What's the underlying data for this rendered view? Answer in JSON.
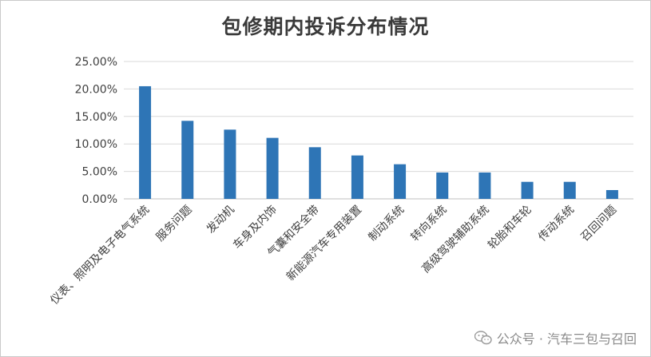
{
  "chart_data": {
    "type": "bar",
    "title": "包修期内投诉分布情况",
    "categories": [
      "仪表、照明及电子电气系统",
      "服务问题",
      "发动机",
      "车身及内饰",
      "气囊和安全带",
      "新能源汽车专用装置",
      "制动系统",
      "转向系统",
      "高级驾驶辅助系统",
      "轮胎和车轮",
      "传动系统",
      "召回问题"
    ],
    "values": [
      20.5,
      14.2,
      12.6,
      11.1,
      9.4,
      7.9,
      6.3,
      4.8,
      4.8,
      3.1,
      3.1,
      1.6
    ],
    "y_ticks": [
      "0.00%",
      "5.00%",
      "10.00%",
      "15.00%",
      "20.00%",
      "25.00%"
    ],
    "ylim": [
      0,
      25
    ],
    "xlabel": "",
    "ylabel": "",
    "grid": true,
    "bar_color": "#2e75b6"
  },
  "watermark": {
    "icon": "wechat-icon",
    "text": "公众号 · 汽车三包与召回"
  }
}
